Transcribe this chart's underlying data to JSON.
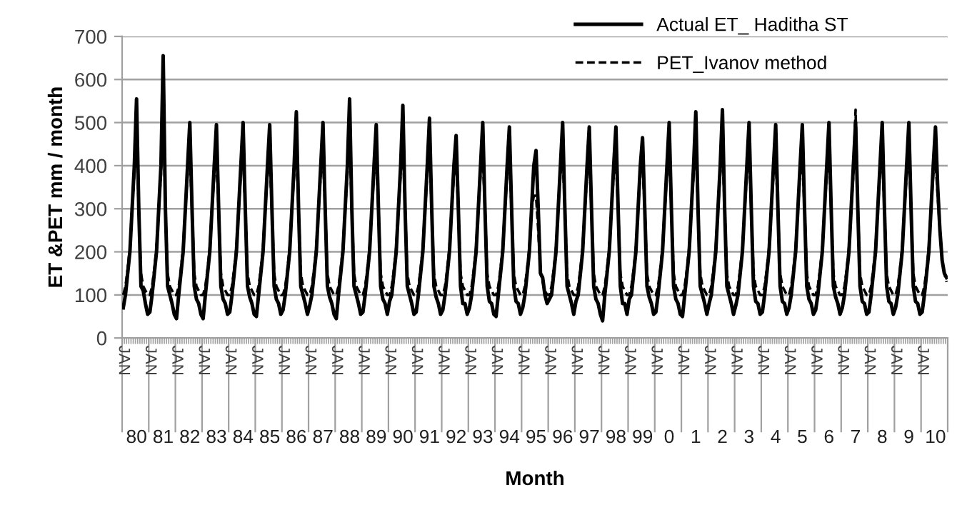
{
  "chart_data": {
    "type": "line",
    "xlabel": "Month",
    "ylabel": "ET &PET mm / month",
    "categories": [
      null,
      null,
      null,
      null,
      null,
      null,
      "80",
      null,
      null,
      null,
      null,
      null,
      null,
      null,
      null,
      null,
      null,
      null,
      "81",
      null,
      null,
      null,
      null,
      null,
      null,
      null,
      null,
      null,
      null,
      null,
      "82",
      null,
      null,
      null,
      null,
      null,
      null,
      null,
      null,
      null,
      null,
      null,
      "83",
      null,
      null,
      null,
      null,
      null,
      null,
      null,
      null,
      null,
      null,
      null,
      "84",
      null,
      null,
      null,
      null,
      null,
      null,
      null,
      null,
      null,
      null,
      null,
      "85",
      null,
      null,
      null,
      null,
      null,
      null,
      null,
      null,
      null,
      null,
      null,
      "86",
      null,
      null,
      null,
      null,
      null,
      null,
      null,
      null,
      null,
      null,
      null,
      "87",
      null,
      null,
      null,
      null,
      null,
      null,
      null,
      null,
      null,
      null,
      null,
      "88",
      null,
      null,
      null,
      null,
      null,
      null,
      null,
      null,
      null,
      null,
      null,
      "89",
      null,
      null,
      null,
      null,
      null,
      null,
      null,
      null,
      null,
      null,
      null,
      "90",
      null,
      null,
      null,
      null,
      null,
      null,
      null,
      null,
      null,
      null,
      null,
      "91",
      null,
      null,
      null,
      null,
      null,
      null,
      null,
      null,
      null,
      null,
      null,
      "92",
      null,
      null,
      null,
      null,
      null,
      null,
      null,
      null,
      null,
      null,
      null,
      "93",
      null,
      null,
      null,
      null,
      null,
      null,
      null,
      null,
      null,
      null,
      null,
      "94",
      null,
      null,
      null,
      null,
      null,
      null,
      null,
      null,
      null,
      null,
      null,
      "95",
      null,
      null,
      null,
      null,
      null,
      null,
      null,
      null,
      null,
      null,
      null,
      "96",
      null,
      null,
      null,
      null,
      null,
      null,
      null,
      null,
      null,
      null,
      null,
      "97",
      null,
      null,
      null,
      null,
      null,
      null,
      null,
      null,
      null,
      null,
      null,
      "98",
      null,
      null,
      null,
      null,
      null,
      null,
      null,
      null,
      null,
      null,
      null,
      "99",
      null,
      null,
      null,
      null,
      null,
      null,
      null,
      null,
      null,
      null,
      null,
      "0",
      null,
      null,
      null,
      null,
      null,
      null,
      null,
      null,
      null,
      null,
      null,
      "1",
      null,
      null,
      null,
      null,
      null,
      null,
      null,
      null,
      null,
      null,
      null,
      "2",
      null,
      null,
      null,
      null,
      null,
      null,
      null,
      null,
      null,
      null,
      null,
      "3",
      null,
      null,
      null,
      null,
      null,
      null,
      null,
      null,
      null,
      null,
      null,
      "4",
      null,
      null,
      null,
      null,
      null,
      null,
      null,
      null,
      null,
      null,
      null,
      "5",
      null,
      null,
      null,
      null,
      null,
      null,
      null,
      null,
      null,
      null,
      null,
      "6",
      null,
      null,
      null,
      null,
      null,
      null,
      null,
      null,
      null,
      null,
      null,
      "7",
      null,
      null,
      null,
      null,
      null,
      null,
      null,
      null,
      null,
      null,
      null,
      "8",
      null,
      null,
      null,
      null,
      null,
      null,
      null,
      null,
      null,
      null,
      null,
      "9",
      null,
      null,
      null,
      null,
      null,
      null,
      null,
      null,
      null,
      null,
      null,
      "10",
      null,
      null,
      null,
      null,
      null
    ],
    "series": [
      {
        "name": "Actual ET_ Haditha ST",
        "color": "#000000",
        "line_style": "solid",
        "values": [
          70,
          100,
          150,
          200,
          300,
          400,
          555,
          300,
          120,
          110,
          80,
          55,
          60,
          100,
          150,
          200,
          300,
          400,
          655,
          300,
          120,
          100,
          80,
          55,
          45,
          100,
          150,
          200,
          300,
          400,
          500,
          300,
          120,
          90,
          80,
          55,
          45,
          100,
          150,
          200,
          300,
          400,
          495,
          300,
          120,
          90,
          80,
          55,
          60,
          100,
          150,
          200,
          300,
          400,
          500,
          300,
          120,
          95,
          80,
          55,
          50,
          100,
          150,
          200,
          300,
          400,
          495,
          300,
          120,
          90,
          80,
          55,
          65,
          100,
          150,
          200,
          300,
          400,
          525,
          300,
          120,
          100,
          80,
          55,
          75,
          100,
          150,
          200,
          300,
          400,
          500,
          300,
          120,
          95,
          80,
          55,
          45,
          100,
          150,
          200,
          300,
          400,
          555,
          300,
          120,
          100,
          80,
          55,
          60,
          100,
          150,
          200,
          300,
          400,
          495,
          300,
          120,
          90,
          80,
          55,
          85,
          100,
          150,
          200,
          300,
          400,
          540,
          300,
          120,
          100,
          80,
          55,
          60,
          100,
          150,
          200,
          300,
          400,
          510,
          300,
          120,
          95,
          80,
          55,
          65,
          100,
          150,
          200,
          300,
          400,
          470,
          300,
          120,
          80,
          80,
          55,
          70,
          100,
          150,
          200,
          300,
          400,
          500,
          300,
          120,
          85,
          80,
          55,
          50,
          100,
          150,
          200,
          300,
          400,
          490,
          300,
          120,
          85,
          80,
          55,
          70,
          100,
          150,
          200,
          300,
          400,
          435,
          300,
          150,
          140,
          100,
          80,
          90,
          100,
          150,
          200,
          300,
          400,
          500,
          300,
          120,
          100,
          80,
          55,
          85,
          100,
          150,
          200,
          300,
          400,
          490,
          300,
          120,
          90,
          80,
          55,
          40,
          100,
          150,
          200,
          300,
          400,
          490,
          300,
          120,
          80,
          80,
          55,
          90,
          100,
          150,
          200,
          300,
          400,
          465,
          300,
          120,
          95,
          80,
          55,
          60,
          100,
          150,
          200,
          300,
          400,
          500,
          300,
          120,
          90,
          80,
          55,
          50,
          100,
          150,
          200,
          300,
          400,
          525,
          300,
          120,
          100,
          80,
          55,
          80,
          100,
          150,
          200,
          300,
          400,
          530,
          300,
          120,
          100,
          80,
          55,
          75,
          100,
          150,
          200,
          300,
          400,
          500,
          300,
          120,
          85,
          80,
          55,
          60,
          100,
          150,
          200,
          300,
          400,
          495,
          300,
          120,
          85,
          80,
          55,
          70,
          100,
          150,
          200,
          300,
          400,
          495,
          300,
          120,
          90,
          80,
          55,
          65,
          100,
          150,
          200,
          300,
          400,
          500,
          300,
          120,
          95,
          80,
          55,
          70,
          100,
          150,
          200,
          300,
          400,
          500,
          300,
          120,
          85,
          80,
          55,
          60,
          100,
          150,
          200,
          300,
          400,
          500,
          300,
          120,
          85,
          80,
          55,
          70,
          100,
          150,
          200,
          300,
          400,
          500,
          300,
          120,
          85,
          80,
          55,
          60,
          100,
          150,
          200,
          300,
          400,
          490,
          350,
          250,
          180,
          150,
          140
        ]
      },
      {
        "name": "PET_Ivanov method",
        "color": "#000000",
        "line_style": "dashed",
        "values": [
          100,
          120,
          160,
          210,
          300,
          380,
          460,
          300,
          150,
          120,
          110,
          100,
          100,
          120,
          160,
          210,
          300,
          380,
          540,
          300,
          150,
          120,
          110,
          100,
          100,
          120,
          160,
          210,
          300,
          380,
          420,
          300,
          150,
          120,
          110,
          100,
          100,
          120,
          160,
          210,
          300,
          380,
          410,
          300,
          150,
          120,
          110,
          100,
          100,
          120,
          160,
          210,
          300,
          380,
          420,
          300,
          150,
          120,
          110,
          100,
          100,
          120,
          160,
          210,
          300,
          380,
          410,
          300,
          150,
          120,
          110,
          100,
          100,
          120,
          160,
          210,
          300,
          380,
          440,
          300,
          150,
          120,
          110,
          100,
          100,
          120,
          160,
          210,
          300,
          380,
          420,
          300,
          150,
          120,
          110,
          100,
          100,
          120,
          160,
          210,
          300,
          380,
          460,
          300,
          150,
          120,
          110,
          100,
          100,
          120,
          160,
          210,
          300,
          380,
          410,
          300,
          150,
          120,
          110,
          100,
          100,
          120,
          160,
          210,
          300,
          380,
          450,
          300,
          150,
          120,
          110,
          100,
          100,
          120,
          160,
          210,
          300,
          380,
          430,
          300,
          150,
          120,
          110,
          100,
          100,
          120,
          160,
          210,
          300,
          380,
          400,
          300,
          150,
          120,
          110,
          100,
          100,
          120,
          160,
          210,
          300,
          380,
          420,
          300,
          150,
          120,
          110,
          100,
          100,
          120,
          160,
          210,
          300,
          380,
          410,
          300,
          150,
          120,
          110,
          100,
          100,
          120,
          160,
          210,
          300,
          330,
          330,
          250,
          150,
          130,
          110,
          100,
          100,
          120,
          160,
          210,
          300,
          380,
          420,
          300,
          150,
          120,
          110,
          100,
          100,
          120,
          160,
          210,
          300,
          380,
          410,
          300,
          150,
          120,
          110,
          100,
          100,
          120,
          160,
          210,
          300,
          380,
          410,
          300,
          150,
          120,
          110,
          100,
          100,
          120,
          160,
          210,
          300,
          380,
          400,
          300,
          150,
          120,
          110,
          100,
          100,
          120,
          160,
          210,
          300,
          380,
          420,
          300,
          150,
          120,
          110,
          100,
          100,
          120,
          160,
          210,
          300,
          380,
          440,
          300,
          150,
          120,
          110,
          100,
          100,
          120,
          160,
          210,
          300,
          380,
          440,
          300,
          150,
          120,
          110,
          100,
          100,
          120,
          160,
          210,
          300,
          380,
          420,
          300,
          150,
          120,
          110,
          100,
          100,
          120,
          160,
          210,
          300,
          380,
          410,
          300,
          150,
          120,
          110,
          100,
          100,
          120,
          160,
          210,
          300,
          380,
          410,
          300,
          150,
          120,
          110,
          100,
          100,
          120,
          160,
          210,
          300,
          380,
          420,
          300,
          150,
          120,
          110,
          100,
          100,
          120,
          160,
          210,
          300,
          380,
          530,
          300,
          150,
          120,
          110,
          100,
          100,
          120,
          160,
          210,
          300,
          380,
          420,
          300,
          150,
          120,
          110,
          100,
          100,
          120,
          160,
          210,
          300,
          380,
          420,
          300,
          150,
          120,
          110,
          100,
          100,
          120,
          160,
          210,
          300,
          380,
          410,
          330,
          250,
          180,
          150,
          130
        ]
      }
    ],
    "ylim": [
      0,
      700
    ],
    "yticks": [
      0,
      100,
      200,
      300,
      400,
      500,
      600,
      700
    ],
    "annotations": [
      "JAN",
      "JAN",
      "JAN",
      "JAN",
      "JAN",
      "JAN",
      "JAN",
      "JAN",
      "JAN",
      "JAN",
      "JAN",
      "JAN",
      "JAN",
      "JAN",
      "JAN",
      "JAN",
      "JAN",
      "JAN",
      "JAN",
      "JAN",
      "JAN",
      "JAN",
      "JAN",
      "JAN",
      "JAN",
      "JAN",
      "JAN",
      "JAN",
      "JAN",
      "JAN",
      "JAN"
    ],
    "grid": "y",
    "legend": "top right",
    "marker": "none"
  }
}
